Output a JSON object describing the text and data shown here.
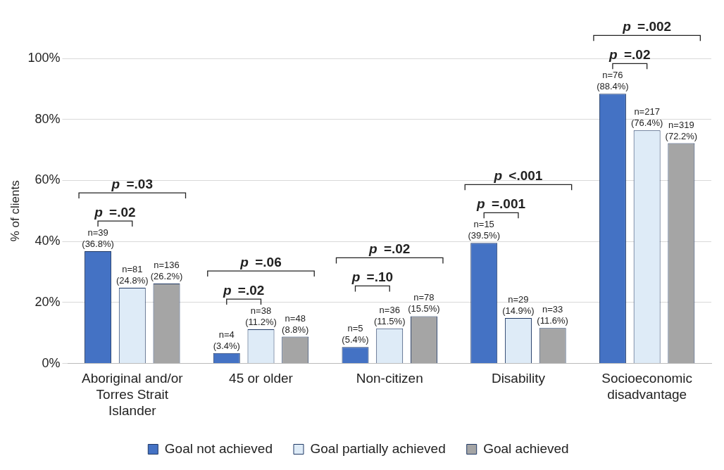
{
  "chart_data": {
    "type": "bar",
    "ylabel": "% of clients",
    "categories": [
      "Aboriginal and/or Torres Strait Islander",
      "45 or older",
      "Non-citizen",
      "Disability",
      "Socioeconomic disadvantage"
    ],
    "series": [
      {
        "name": "Goal not achieved",
        "color": "#4472c4",
        "values": [
          36.8,
          3.4,
          5.4,
          39.5,
          88.4
        ],
        "value_labels": [
          "n=39 (36.8%)",
          "n=4 (3.4%)",
          "n=5 (5.4%)",
          "n=15 (39.5%)",
          "n=76 (88.4%)"
        ]
      },
      {
        "name": "Goal partially achieved",
        "color": "#deebf7",
        "values": [
          24.8,
          11.2,
          11.5,
          14.9,
          76.4
        ],
        "value_labels": [
          "n=81 (24.8%)",
          "n=38 (11.2%)",
          "n=36 (11.5%)",
          "n=29 (14.9%)",
          "n=217 (76.4%)"
        ]
      },
      {
        "name": "Goal achieved",
        "color": "#a5a5a5",
        "values": [
          26.2,
          8.8,
          15.5,
          11.6,
          72.2
        ],
        "value_labels": [
          "n=136 (26.2%)",
          "n=48 (8.8%)",
          "n=78 (15.5%)",
          "n=33 (11.6%)",
          "n=319 (72.2%)"
        ]
      }
    ],
    "ylim": [
      0,
      100
    ],
    "yticks": [
      {
        "value": 0,
        "label": "0%"
      },
      {
        "value": 20,
        "label": "20%"
      },
      {
        "value": 40,
        "label": "40%"
      },
      {
        "value": 60,
        "label": "60%"
      },
      {
        "value": 80,
        "label": "80%"
      },
      {
        "value": 100,
        "label": "100%"
      }
    ],
    "grid": "y",
    "legend": "bottom",
    "annotations": [
      "p =.02",
      "p =.03",
      "p =.02",
      "p =.06",
      "p =.10",
      "p =.02",
      "p =.001",
      "p <.001",
      "p =.02",
      "p =.002"
    ]
  }
}
